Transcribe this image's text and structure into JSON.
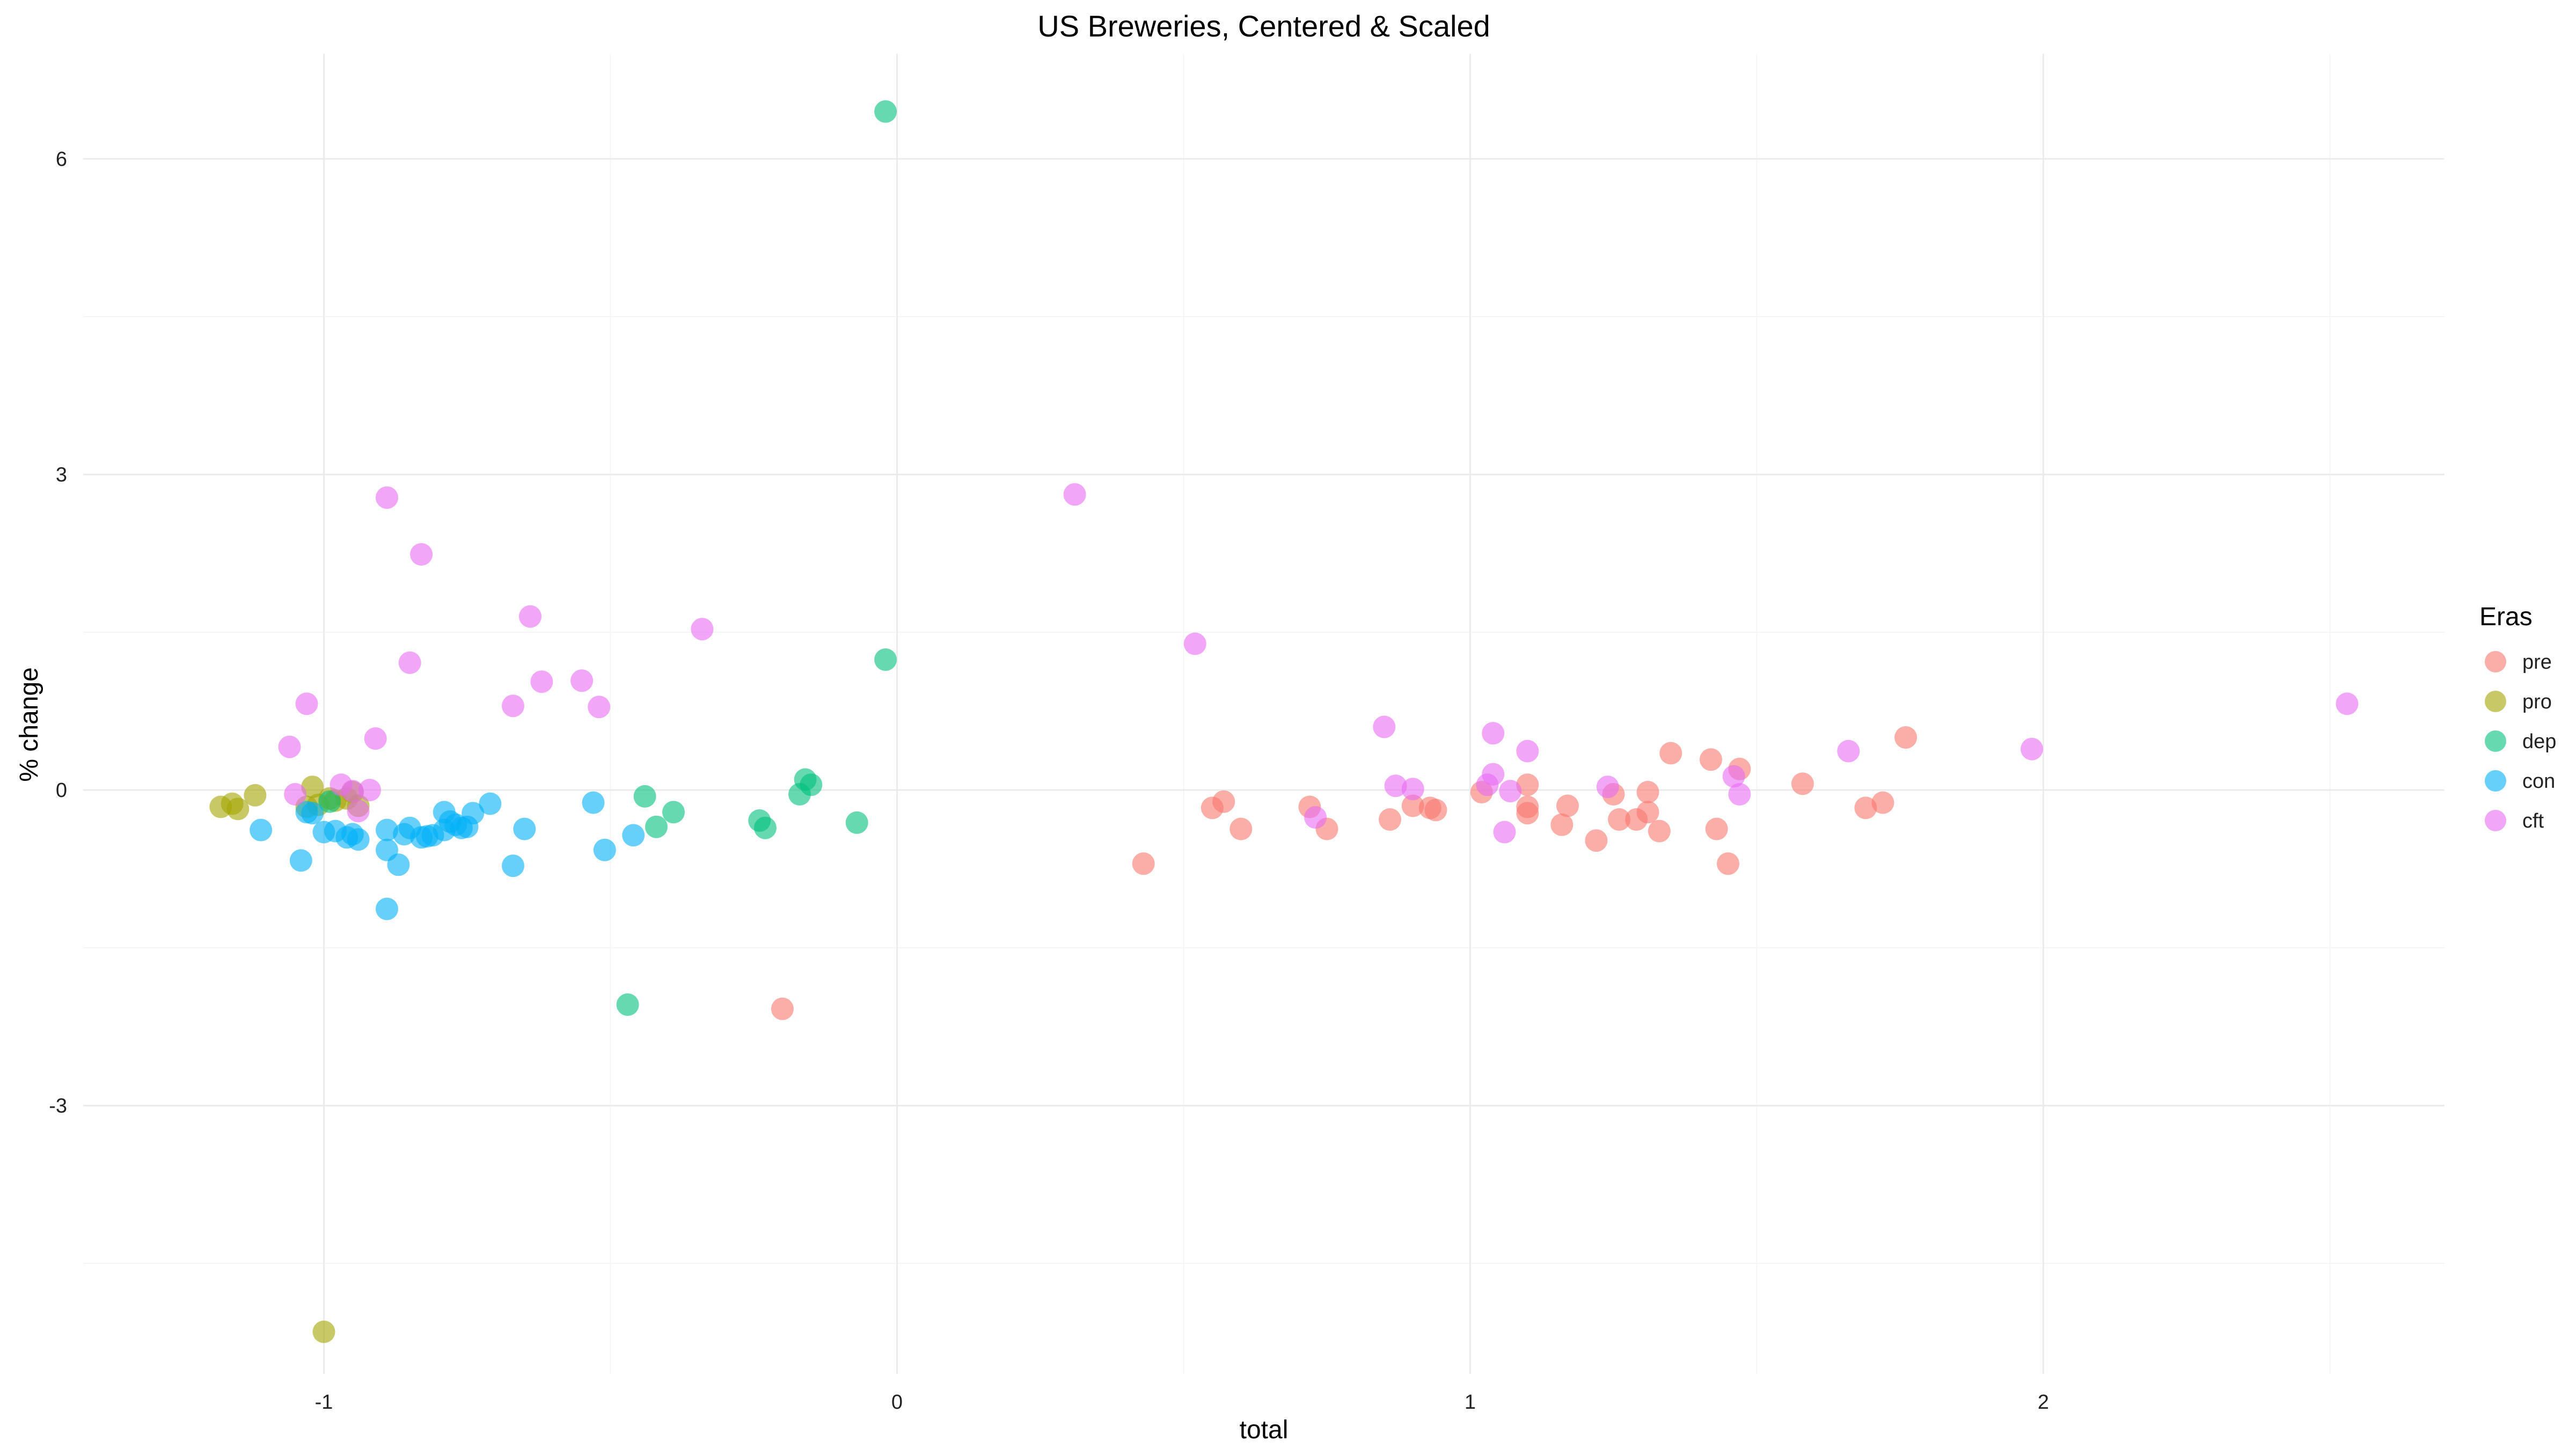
{
  "chart_data": {
    "type": "scatter",
    "title": "US Breweries, Centered & Scaled",
    "xlabel": "total",
    "ylabel": "% change",
    "xlim": [
      -1.42,
      2.7
    ],
    "ylim": [
      -5.55,
      7.0
    ],
    "x_ticks": [
      -1,
      0,
      1,
      2
    ],
    "y_ticks": [
      -3,
      0,
      3,
      6
    ],
    "x_tick_labels": [
      "-1",
      "0",
      "1",
      "2"
    ],
    "y_tick_labels": [
      "-3",
      "0",
      "3",
      "6"
    ],
    "grid": true,
    "legend_title": "Eras",
    "legend_position": "right",
    "marker_opacity": 0.6,
    "series": [
      {
        "name": "pre",
        "color": "#F8766D",
        "points": [
          [
            0.43,
            -0.7
          ],
          [
            0.55,
            -0.17
          ],
          [
            0.57,
            -0.11
          ],
          [
            0.6,
            -0.37
          ],
          [
            0.72,
            -0.16
          ],
          [
            0.75,
            -0.37
          ],
          [
            0.86,
            -0.28
          ],
          [
            0.9,
            -0.15
          ],
          [
            0.93,
            -0.17
          ],
          [
            0.94,
            -0.19
          ],
          [
            1.02,
            -0.02
          ],
          [
            1.1,
            0.05
          ],
          [
            1.1,
            -0.16
          ],
          [
            1.1,
            -0.22
          ],
          [
            1.16,
            -0.33
          ],
          [
            1.17,
            -0.15
          ],
          [
            1.22,
            -0.48
          ],
          [
            1.25,
            -0.04
          ],
          [
            1.26,
            -0.28
          ],
          [
            1.29,
            -0.28
          ],
          [
            1.31,
            -0.02
          ],
          [
            1.31,
            -0.21
          ],
          [
            1.33,
            -0.39
          ],
          [
            1.35,
            0.35
          ],
          [
            1.42,
            0.29
          ],
          [
            1.43,
            -0.37
          ],
          [
            1.45,
            -0.7
          ],
          [
            1.47,
            0.2
          ],
          [
            1.58,
            0.06
          ],
          [
            1.69,
            -0.17
          ],
          [
            1.72,
            -0.12
          ],
          [
            1.76,
            0.5
          ],
          [
            -0.2,
            -2.08
          ]
        ]
      },
      {
        "name": "pro",
        "color": "#A3A500",
        "points": [
          [
            -1.18,
            -0.16
          ],
          [
            -1.16,
            -0.13
          ],
          [
            -1.15,
            -0.18
          ],
          [
            -1.12,
            -0.05
          ],
          [
            -1.03,
            -0.16
          ],
          [
            -1.02,
            0.03
          ],
          [
            -1.01,
            -0.14
          ],
          [
            -0.99,
            -0.08
          ],
          [
            -0.98,
            -0.1
          ],
          [
            -0.96,
            -0.08
          ],
          [
            -0.95,
            -0.02
          ],
          [
            -0.94,
            -0.15
          ],
          [
            -1.0,
            -5.15
          ]
        ]
      },
      {
        "name": "dep",
        "color": "#00BF7D",
        "points": [
          [
            -0.02,
            6.45
          ],
          [
            -0.02,
            1.24
          ],
          [
            -0.47,
            -2.04
          ],
          [
            -0.44,
            -0.06
          ],
          [
            -0.42,
            -0.35
          ],
          [
            -0.39,
            -0.21
          ],
          [
            -0.24,
            -0.29
          ],
          [
            -0.23,
            -0.36
          ],
          [
            -0.17,
            -0.04
          ],
          [
            -0.16,
            0.1
          ],
          [
            -0.15,
            0.05
          ],
          [
            -0.07,
            -0.31
          ],
          [
            -0.99,
            -0.11
          ]
        ]
      },
      {
        "name": "con",
        "color": "#00B0F6",
        "points": [
          [
            -1.11,
            -0.38
          ],
          [
            -1.04,
            -0.67
          ],
          [
            -1.03,
            -0.21
          ],
          [
            -1.02,
            -0.22
          ],
          [
            -1.0,
            -0.4
          ],
          [
            -0.98,
            -0.39
          ],
          [
            -0.96,
            -0.45
          ],
          [
            -0.95,
            -0.42
          ],
          [
            -0.94,
            -0.47
          ],
          [
            -0.89,
            -0.38
          ],
          [
            -0.89,
            -0.57
          ],
          [
            -0.89,
            -1.13
          ],
          [
            -0.87,
            -0.71
          ],
          [
            -0.86,
            -0.42
          ],
          [
            -0.85,
            -0.36
          ],
          [
            -0.83,
            -0.45
          ],
          [
            -0.82,
            -0.44
          ],
          [
            -0.81,
            -0.43
          ],
          [
            -0.79,
            -0.38
          ],
          [
            -0.79,
            -0.21
          ],
          [
            -0.78,
            -0.3
          ],
          [
            -0.77,
            -0.33
          ],
          [
            -0.76,
            -0.36
          ],
          [
            -0.75,
            -0.35
          ],
          [
            -0.74,
            -0.22
          ],
          [
            -0.71,
            -0.13
          ],
          [
            -0.67,
            -0.72
          ],
          [
            -0.65,
            -0.37
          ],
          [
            -0.53,
            -0.12
          ],
          [
            -0.51,
            -0.57
          ],
          [
            -0.46,
            -0.43
          ]
        ]
      },
      {
        "name": "cft",
        "color": "#E76BF3",
        "points": [
          [
            -1.06,
            0.41
          ],
          [
            -1.05,
            -0.04
          ],
          [
            -1.03,
            0.82
          ],
          [
            -0.97,
            0.05
          ],
          [
            -0.95,
            -0.01
          ],
          [
            -0.94,
            -0.2
          ],
          [
            -0.92,
            0.0
          ],
          [
            -0.91,
            0.49
          ],
          [
            -0.89,
            2.78
          ],
          [
            -0.85,
            1.21
          ],
          [
            -0.83,
            2.24
          ],
          [
            -0.67,
            0.8
          ],
          [
            -0.64,
            1.65
          ],
          [
            -0.62,
            1.03
          ],
          [
            -0.55,
            1.04
          ],
          [
            -0.52,
            0.79
          ],
          [
            -0.34,
            1.53
          ],
          [
            0.31,
            2.81
          ],
          [
            0.52,
            1.39
          ],
          [
            0.73,
            -0.26
          ],
          [
            0.85,
            0.6
          ],
          [
            0.87,
            0.04
          ],
          [
            0.9,
            0.01
          ],
          [
            1.03,
            0.05
          ],
          [
            1.04,
            0.15
          ],
          [
            1.04,
            0.54
          ],
          [
            1.06,
            -0.4
          ],
          [
            1.07,
            -0.01
          ],
          [
            1.1,
            0.37
          ],
          [
            1.24,
            0.03
          ],
          [
            1.46,
            0.13
          ],
          [
            1.47,
            -0.04
          ],
          [
            1.66,
            0.37
          ],
          [
            1.98,
            0.39
          ],
          [
            2.53,
            0.82
          ]
        ]
      }
    ]
  }
}
